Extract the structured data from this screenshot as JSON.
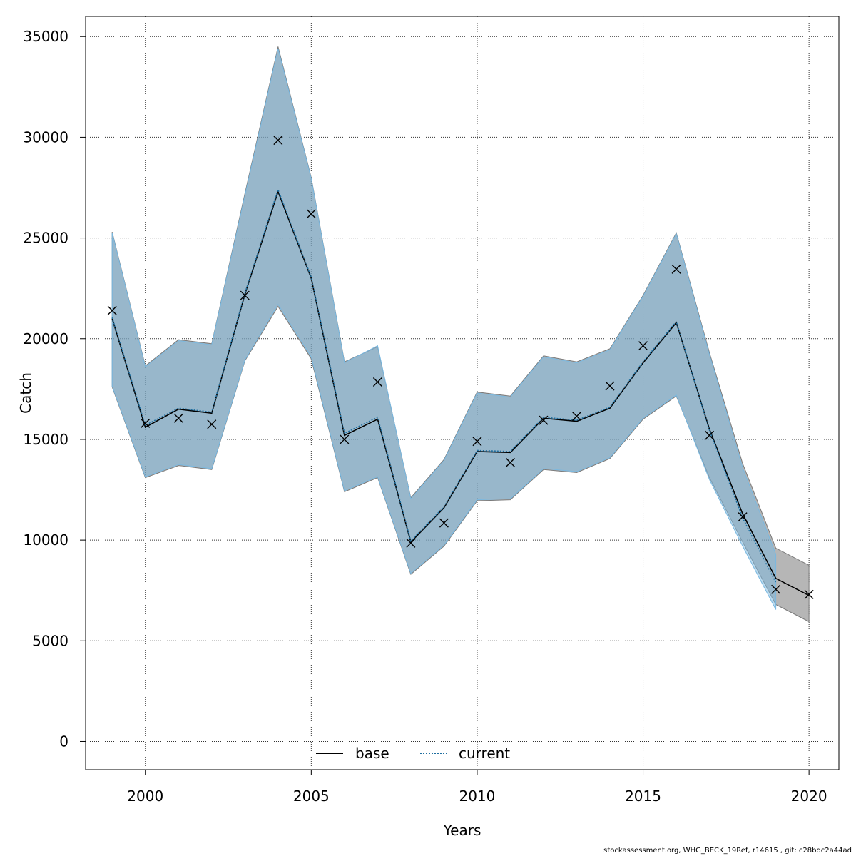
{
  "chart_data": {
    "type": "line",
    "xlabel": "Years",
    "ylabel": "Catch",
    "xlim": [
      1998.2,
      2020.9
    ],
    "ylim": [
      -1400,
      36000
    ],
    "x_ticks": [
      2000,
      2005,
      2010,
      2015,
      2020
    ],
    "y_ticks": [
      0,
      5000,
      10000,
      15000,
      20000,
      25000,
      30000,
      35000
    ],
    "grid": true,
    "legend_position": "bottom-center",
    "series": [
      {
        "name": "base",
        "style": "solid",
        "color": "#000000",
        "band_color": "#7a7a7a",
        "x": [
          1999,
          2000,
          2001,
          2002,
          2003,
          2004,
          2005,
          2006,
          2007,
          2008,
          2009,
          2010,
          2011,
          2012,
          2013,
          2014,
          2015,
          2016,
          2017,
          2018,
          2019,
          2020
        ],
        "values": [
          21000,
          15600,
          16500,
          16300,
          22200,
          27300,
          23000,
          15200,
          16000,
          9900,
          11600,
          14400,
          14350,
          16050,
          15900,
          16550,
          18800,
          20800,
          15500,
          11300,
          8100,
          7250
        ],
        "lower": [
          17600,
          13100,
          13700,
          13500,
          18900,
          21600,
          19000,
          12400,
          13100,
          8300,
          9700,
          11950,
          12000,
          13500,
          13350,
          14050,
          16000,
          17150,
          13100,
          9900,
          6800,
          5950
        ],
        "upper": [
          25300,
          18650,
          19950,
          19750,
          27200,
          34500,
          28000,
          18850,
          19600,
          12100,
          14000,
          17350,
          17150,
          19150,
          18850,
          19500,
          22150,
          25250,
          19300,
          13800,
          9600,
          8750
        ]
      },
      {
        "name": "current",
        "style": "dotted",
        "color": "#1f6fa0",
        "band_color": "#7ab8e0",
        "x": [
          1999,
          2000,
          2001,
          2002,
          2003,
          2004,
          2005,
          2006,
          2007,
          2008,
          2009,
          2010,
          2011,
          2012,
          2013,
          2014,
          2015,
          2016,
          2017,
          2018,
          2019
        ],
        "values": [
          21050,
          15700,
          16550,
          16350,
          22250,
          27400,
          23050,
          15300,
          16100,
          9950,
          11650,
          14450,
          14400,
          16100,
          15950,
          16600,
          18850,
          20850,
          15450,
          11100,
          7900
        ],
        "lower": [
          17650,
          13150,
          13750,
          13550,
          18950,
          21700,
          19100,
          12450,
          13150,
          8350,
          9750,
          12000,
          12050,
          13550,
          13400,
          14100,
          16050,
          17200,
          13000,
          9700,
          6550
        ],
        "upper": [
          25250,
          18600,
          19900,
          19700,
          27100,
          34400,
          27950,
          18800,
          19650,
          12050,
          13950,
          17300,
          17100,
          19100,
          18800,
          19450,
          22100,
          25200,
          19200,
          13600,
          9300
        ]
      }
    ],
    "observed": {
      "marker": "x",
      "x": [
        1999,
        2000,
        2001,
        2002,
        2003,
        2004,
        2005,
        2006,
        2007,
        2008,
        2009,
        2010,
        2011,
        2012,
        2013,
        2014,
        2015,
        2016,
        2017,
        2018,
        2019,
        2020
      ],
      "values": [
        21400,
        15800,
        16050,
        15750,
        22150,
        29850,
        26200,
        15000,
        17850,
        9850,
        10850,
        14900,
        13850,
        15950,
        16150,
        17650,
        19650,
        23450,
        15200,
        11150,
        7550,
        7300
      ]
    }
  },
  "footer_text": "stockassessment.org, WHG_BECK_19Ref, r14615 , git: c28bdc2a44ad"
}
